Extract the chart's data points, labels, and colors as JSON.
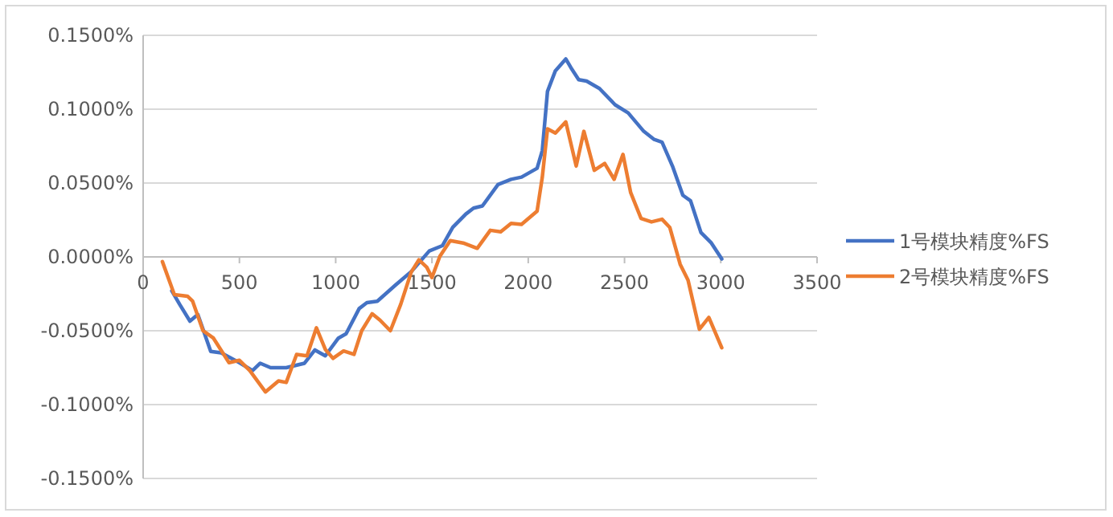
{
  "chart_data": {
    "type": "line",
    "xlim": [
      0,
      3500
    ],
    "xticks": [
      0,
      500,
      1000,
      1500,
      2000,
      2500,
      3000,
      3500
    ],
    "ylim": [
      -0.15,
      0.15
    ],
    "yticks": [
      {
        "value": -0.15,
        "label": "-0.1500%"
      },
      {
        "value": -0.1,
        "label": "-0.1000%"
      },
      {
        "value": -0.05,
        "label": "-0.0500%"
      },
      {
        "value": 0,
        "label": "0.0000%"
      },
      {
        "value": 0.05,
        "label": "0.0500%"
      },
      {
        "value": 0.1,
        "label": "0.1000%"
      },
      {
        "value": 0.15,
        "label": "0.1500%"
      }
    ],
    "grid": "y",
    "legend": "right",
    "marker": "none",
    "line_style": "solid",
    "series": [
      {
        "name": "1号模块精度%FS",
        "color": "#4472c4",
        "x": [
          149,
          189,
          243,
          284,
          351,
          405,
          500,
          568,
          608,
          662,
          743,
          838,
          892,
          946,
          1014,
          1054,
          1122,
          1162,
          1216,
          1311,
          1392,
          1486,
          1554,
          1608,
          1676,
          1716,
          1762,
          1843,
          1911,
          1965,
          2046,
          2073,
          2100,
          2141,
          2195,
          2222,
          2262,
          2303,
          2370,
          2451,
          2519,
          2600,
          2654,
          2695,
          2749,
          2803,
          2843,
          2897,
          2951,
          3005
        ],
        "values": [
          -0.023,
          -0.032,
          -0.0435,
          -0.039,
          -0.064,
          -0.065,
          -0.0716,
          -0.077,
          -0.072,
          -0.075,
          -0.075,
          -0.072,
          -0.063,
          -0.067,
          -0.055,
          -0.052,
          -0.035,
          -0.031,
          -0.03,
          -0.019,
          -0.01,
          0.004,
          0.0076,
          0.02,
          0.029,
          0.033,
          0.0345,
          0.049,
          0.0525,
          0.054,
          0.06,
          0.072,
          0.112,
          0.126,
          0.134,
          0.128,
          0.12,
          0.119,
          0.114,
          0.103,
          0.0975,
          0.085,
          0.0795,
          0.0777,
          0.0615,
          0.0417,
          0.038,
          0.0165,
          0.0094,
          -0.0014
        ]
      },
      {
        "name": "2号模块精度%FS",
        "color": "#ed7d31",
        "x": [
          100,
          162,
          230,
          257,
          311,
          365,
          446,
          500,
          554,
          635,
          703,
          743,
          797,
          851,
          900,
          946,
          986,
          1041,
          1095,
          1135,
          1189,
          1230,
          1284,
          1338,
          1392,
          1432,
          1473,
          1500,
          1541,
          1595,
          1662,
          1735,
          1803,
          1857,
          1911,
          1965,
          2046,
          2073,
          2100,
          2141,
          2195,
          2249,
          2289,
          2343,
          2397,
          2446,
          2492,
          2532,
          2586,
          2640,
          2695,
          2735,
          2789,
          2830,
          2889,
          2938,
          3005
        ],
        "values": [
          -0.0032,
          -0.0255,
          -0.0266,
          -0.03,
          -0.05,
          -0.055,
          -0.0716,
          -0.07,
          -0.077,
          -0.0914,
          -0.084,
          -0.085,
          -0.066,
          -0.067,
          -0.048,
          -0.0626,
          -0.0687,
          -0.0637,
          -0.066,
          -0.05,
          -0.0385,
          -0.0428,
          -0.05,
          -0.032,
          -0.0104,
          -0.002,
          -0.007,
          -0.014,
          0.0004,
          0.011,
          0.0094,
          0.0058,
          0.018,
          0.017,
          0.0227,
          0.022,
          0.031,
          0.054,
          0.0867,
          0.0838,
          0.0914,
          0.0615,
          0.085,
          0.0586,
          0.0633,
          0.0525,
          0.0694,
          0.0435,
          0.026,
          0.0237,
          0.0255,
          0.02,
          -0.005,
          -0.0158,
          -0.049,
          -0.041,
          -0.0615
        ]
      }
    ]
  }
}
